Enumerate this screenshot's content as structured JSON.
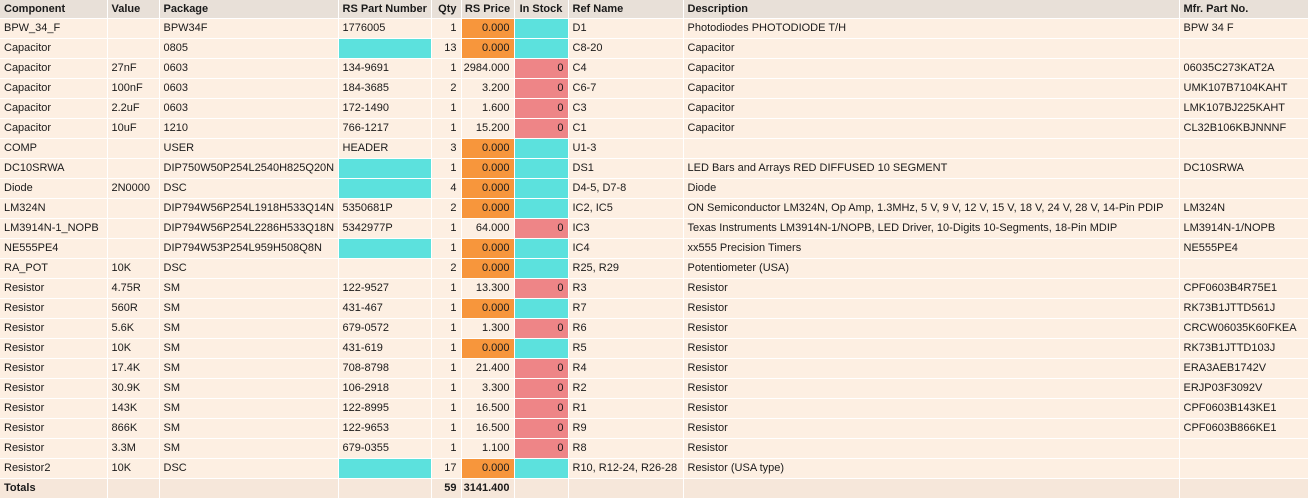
{
  "headers": [
    "Component",
    "Value",
    "Package",
    "RS Part Number",
    "Qty",
    "RS Price",
    "In Stock",
    "Ref Name",
    "Description",
    "Mfr. Part No."
  ],
  "colors": {
    "row_bg": "#fdefe2",
    "header_bg": "#e8e0d8",
    "cyan": "#5ce1dd",
    "orange": "#f7963c",
    "red": "#ee8587"
  },
  "rows": [
    {
      "component": "BPW_34_F",
      "value": "",
      "package": "BPW34F",
      "rs_part": "1776005",
      "qty": "1",
      "price": "0.000",
      "stock": "",
      "ref": "D1",
      "desc": "Photodiodes PHOTODIODE T/H",
      "mfr": "BPW 34 F",
      "rs_part_color": "none",
      "price_color": "orange",
      "stock_color": "cyan"
    },
    {
      "component": "Capacitor",
      "value": "",
      "package": "0805",
      "rs_part": "",
      "qty": "13",
      "price": "0.000",
      "stock": "",
      "ref": "C8-20",
      "desc": "Capacitor",
      "mfr": "",
      "rs_part_color": "cyan",
      "price_color": "orange",
      "stock_color": "cyan"
    },
    {
      "component": "Capacitor",
      "value": "27nF",
      "package": "0603",
      "rs_part": "134-9691",
      "qty": "1",
      "price": "2984.000",
      "stock": "0",
      "ref": "C4",
      "desc": "Capacitor",
      "mfr": "06035C273KAT2A",
      "rs_part_color": "none",
      "price_color": "none",
      "stock_color": "red"
    },
    {
      "component": "Capacitor",
      "value": "100nF",
      "package": "0603",
      "rs_part": "184-3685",
      "qty": "2",
      "price": "3.200",
      "stock": "0",
      "ref": "C6-7",
      "desc": "Capacitor",
      "mfr": "UMK107B7104KAHT",
      "rs_part_color": "none",
      "price_color": "none",
      "stock_color": "red"
    },
    {
      "component": "Capacitor",
      "value": "2.2uF",
      "package": "0603",
      "rs_part": "172-1490",
      "qty": "1",
      "price": "1.600",
      "stock": "0",
      "ref": "C3",
      "desc": "Capacitor",
      "mfr": "LMK107BJ225KAHT",
      "rs_part_color": "none",
      "price_color": "none",
      "stock_color": "red"
    },
    {
      "component": "Capacitor",
      "value": "10uF",
      "package": "1210",
      "rs_part": "766-1217",
      "qty": "1",
      "price": "15.200",
      "stock": "0",
      "ref": "C1",
      "desc": "Capacitor",
      "mfr": "CL32B106KBJNNNF",
      "rs_part_color": "none",
      "price_color": "none",
      "stock_color": "red"
    },
    {
      "component": "COMP",
      "value": "",
      "package": "USER",
      "rs_part": "HEADER",
      "qty": "3",
      "price": "0.000",
      "stock": "",
      "ref": "U1-3",
      "desc": "",
      "mfr": "",
      "rs_part_color": "none",
      "price_color": "orange",
      "stock_color": "cyan"
    },
    {
      "component": "DC10SRWA",
      "value": "",
      "package": "DIP750W50P254L2540H825Q20N",
      "rs_part": "",
      "qty": "1",
      "price": "0.000",
      "stock": "",
      "ref": "DS1",
      "desc": "LED Bars and Arrays RED DIFFUSED 10 SEGMENT",
      "mfr": "DC10SRWA",
      "rs_part_color": "cyan",
      "price_color": "orange",
      "stock_color": "cyan"
    },
    {
      "component": "Diode",
      "value": "2N0000",
      "package": "DSC",
      "rs_part": "",
      "qty": "4",
      "price": "0.000",
      "stock": "",
      "ref": "D4-5, D7-8",
      "desc": "Diode",
      "mfr": "",
      "rs_part_color": "cyan",
      "price_color": "orange",
      "stock_color": "cyan"
    },
    {
      "component": "LM324N",
      "value": "",
      "package": "DIP794W56P254L1918H533Q14N",
      "rs_part": "5350681P",
      "qty": "2",
      "price": "0.000",
      "stock": "",
      "ref": "IC2, IC5",
      "desc": "ON Semiconductor LM324N, Op Amp, 1.3MHz, 5 V, 9 V, 12 V, 15 V, 18 V, 24 V, 28 V, 14-Pin PDIP",
      "mfr": "LM324N",
      "rs_part_color": "none",
      "price_color": "orange",
      "stock_color": "cyan"
    },
    {
      "component": "LM3914N-1_NOPB",
      "value": "",
      "package": "DIP794W56P254L2286H533Q18N",
      "rs_part": "5342977P",
      "qty": "1",
      "price": "64.000",
      "stock": "0",
      "ref": "IC3",
      "desc": "Texas Instruments LM3914N-1/NOPB, LED Driver, 10-Digits 10-Segments, 18-Pin MDIP",
      "mfr": "LM3914N-1/NOPB",
      "rs_part_color": "none",
      "price_color": "none",
      "stock_color": "red"
    },
    {
      "component": "NE555PE4",
      "value": "",
      "package": "DIP794W53P254L959H508Q8N",
      "rs_part": "",
      "qty": "1",
      "price": "0.000",
      "stock": "",
      "ref": "IC4",
      "desc": "xx555 Precision Timers",
      "mfr": "NE555PE4",
      "rs_part_color": "cyan",
      "price_color": "orange",
      "stock_color": "cyan"
    },
    {
      "component": "RA_POT",
      "value": "10K",
      "package": "DSC",
      "rs_part": "",
      "qty": "2",
      "price": "0.000",
      "stock": "",
      "ref": "R25, R29",
      "desc": "Potentiometer (USA)",
      "mfr": "",
      "rs_part_color": "none",
      "price_color": "orange",
      "stock_color": "cyan"
    },
    {
      "component": "Resistor",
      "value": "4.75R",
      "package": "SM",
      "rs_part": "122-9527",
      "qty": "1",
      "price": "13.300",
      "stock": "0",
      "ref": "R3",
      "desc": "Resistor",
      "mfr": "CPF0603B4R75E1",
      "rs_part_color": "none",
      "price_color": "none",
      "stock_color": "red"
    },
    {
      "component": "Resistor",
      "value": "560R",
      "package": "SM",
      "rs_part": "431-467",
      "qty": "1",
      "price": "0.000",
      "stock": "",
      "ref": "R7",
      "desc": "Resistor",
      "mfr": "RK73B1JTTD561J",
      "rs_part_color": "none",
      "price_color": "orange",
      "stock_color": "cyan"
    },
    {
      "component": "Resistor",
      "value": "5.6K",
      "package": "SM",
      "rs_part": "679-0572",
      "qty": "1",
      "price": "1.300",
      "stock": "0",
      "ref": "R6",
      "desc": "Resistor",
      "mfr": "CRCW06035K60FKEA",
      "rs_part_color": "none",
      "price_color": "none",
      "stock_color": "red"
    },
    {
      "component": "Resistor",
      "value": "10K",
      "package": "SM",
      "rs_part": "431-619",
      "qty": "1",
      "price": "0.000",
      "stock": "",
      "ref": "R5",
      "desc": "Resistor",
      "mfr": "RK73B1JTTD103J",
      "rs_part_color": "none",
      "price_color": "orange",
      "stock_color": "cyan"
    },
    {
      "component": "Resistor",
      "value": "17.4K",
      "package": "SM",
      "rs_part": "708-8798",
      "qty": "1",
      "price": "21.400",
      "stock": "0",
      "ref": "R4",
      "desc": "Resistor",
      "mfr": "ERA3AEB1742V",
      "rs_part_color": "none",
      "price_color": "none",
      "stock_color": "red"
    },
    {
      "component": "Resistor",
      "value": "30.9K",
      "package": "SM",
      "rs_part": "106-2918",
      "qty": "1",
      "price": "3.300",
      "stock": "0",
      "ref": "R2",
      "desc": "Resistor",
      "mfr": "ERJP03F3092V",
      "rs_part_color": "none",
      "price_color": "none",
      "stock_color": "red"
    },
    {
      "component": "Resistor",
      "value": "143K",
      "package": "SM",
      "rs_part": "122-8995",
      "qty": "1",
      "price": "16.500",
      "stock": "0",
      "ref": "R1",
      "desc": "Resistor",
      "mfr": "CPF0603B143KE1",
      "rs_part_color": "none",
      "price_color": "none",
      "stock_color": "red"
    },
    {
      "component": "Resistor",
      "value": "866K",
      "package": "SM",
      "rs_part": "122-9653",
      "qty": "1",
      "price": "16.500",
      "stock": "0",
      "ref": "R9",
      "desc": "Resistor",
      "mfr": "CPF0603B866KE1",
      "rs_part_color": "none",
      "price_color": "none",
      "stock_color": "red"
    },
    {
      "component": "Resistor",
      "value": "3.3M",
      "package": "SM",
      "rs_part": "679-0355",
      "qty": "1",
      "price": "1.100",
      "stock": "0",
      "ref": "R8",
      "desc": "Resistor",
      "mfr": "",
      "rs_part_color": "none",
      "price_color": "none",
      "stock_color": "red"
    },
    {
      "component": "Resistor2",
      "value": "10K",
      "package": "DSC",
      "rs_part": "",
      "qty": "17",
      "price": "0.000",
      "stock": "",
      "ref": "R10, R12-24, R26-28",
      "desc": "Resistor (USA type)",
      "mfr": "",
      "rs_part_color": "cyan",
      "price_color": "orange",
      "stock_color": "cyan"
    }
  ],
  "totals": {
    "label": "Totals",
    "qty": "59",
    "price": "3141.400"
  }
}
